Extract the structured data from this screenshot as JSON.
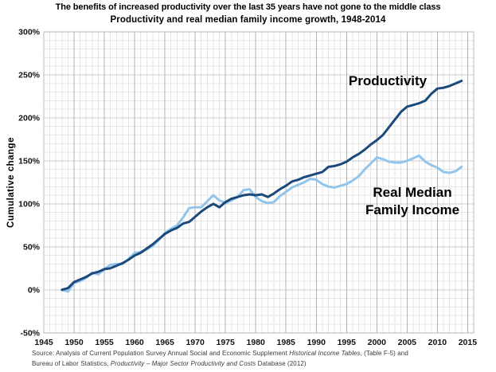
{
  "chart_data": {
    "type": "line",
    "title": "The benefits of increased productivity over the last 35 years have not gone to the middle class",
    "subtitle": "Productivity and real median family income growth, 1948-2014",
    "ylabel": "Cumulative change",
    "x_range": [
      1945,
      2016
    ],
    "y_range": [
      -50,
      300
    ],
    "grid": {
      "x_minor_step": 1,
      "x_major_step": 5,
      "y_minor_step": 10,
      "y_major_step": 50,
      "on": true
    },
    "x_ticks": [
      {
        "value": 1945,
        "label": "1945"
      },
      {
        "value": 1950,
        "label": "1950"
      },
      {
        "value": 1955,
        "label": "1955"
      },
      {
        "value": 1960,
        "label": "1960"
      },
      {
        "value": 1965,
        "label": "1965"
      },
      {
        "value": 1970,
        "label": "1970"
      },
      {
        "value": 1975,
        "label": "1975"
      },
      {
        "value": 1980,
        "label": "1980"
      },
      {
        "value": 1985,
        "label": "1985"
      },
      {
        "value": 1990,
        "label": "1990"
      },
      {
        "value": 1995,
        "label": "1995"
      },
      {
        "value": 2000,
        "label": "2000"
      },
      {
        "value": 2005,
        "label": "2005"
      },
      {
        "value": 2010,
        "label": "2010"
      },
      {
        "value": 2015,
        "label": "2015"
      }
    ],
    "y_ticks": [
      {
        "value": 300,
        "label": "300%"
      },
      {
        "value": 250,
        "label": "250%"
      },
      {
        "value": 200,
        "label": "200%"
      },
      {
        "value": 150,
        "label": "150%"
      },
      {
        "value": 100,
        "label": "100%"
      },
      {
        "value": 50,
        "label": "50%"
      },
      {
        "value": 0,
        "label": "0%"
      },
      {
        "value": -50,
        "label": "-50%"
      }
    ],
    "years": [
      1948,
      1949,
      1950,
      1951,
      1952,
      1953,
      1954,
      1955,
      1956,
      1957,
      1958,
      1959,
      1960,
      1961,
      1962,
      1963,
      1964,
      1965,
      1966,
      1967,
      1968,
      1969,
      1970,
      1971,
      1972,
      1973,
      1974,
      1975,
      1976,
      1977,
      1978,
      1979,
      1980,
      1981,
      1982,
      1983,
      1984,
      1985,
      1986,
      1987,
      1988,
      1989,
      1990,
      1991,
      1992,
      1993,
      1994,
      1995,
      1996,
      1997,
      1998,
      1999,
      2000,
      2001,
      2002,
      2003,
      2004,
      2005,
      2006,
      2007,
      2008,
      2009,
      2010,
      2011,
      2012,
      2013,
      2014
    ],
    "series": [
      {
        "name": "Productivity",
        "color": "#1b4a7a",
        "values": [
          0,
          2,
          9,
          12,
          15,
          19,
          21,
          24,
          25,
          28,
          31,
          35,
          40,
          43,
          48,
          53,
          59,
          65,
          69,
          72,
          77,
          79,
          85,
          91,
          96,
          100,
          96,
          102,
          106,
          108,
          110,
          111,
          110,
          111,
          108,
          112,
          117,
          121,
          126,
          128,
          131,
          133,
          135,
          137,
          143,
          144,
          146,
          149,
          154,
          158,
          163,
          169,
          174,
          180,
          189,
          198,
          207,
          213,
          215,
          217,
          220,
          228,
          234,
          235,
          237,
          240,
          243
        ]
      },
      {
        "name": "Real Median Family Income",
        "color": "#92c5ec",
        "values": [
          0,
          -2,
          8,
          10,
          14,
          20,
          18,
          24,
          29,
          30,
          30,
          36,
          43,
          44,
          47,
          51,
          58,
          66,
          71,
          75,
          84,
          95,
          96,
          96,
          103,
          110,
          104,
          101,
          104,
          108,
          116,
          117,
          108,
          103,
          101,
          102,
          109,
          114,
          119,
          122,
          125,
          129,
          128,
          123,
          120,
          119,
          121,
          123,
          127,
          132,
          140,
          147,
          154,
          152,
          149,
          148,
          148,
          150,
          153,
          156,
          149,
          145,
          142,
          137,
          136,
          138,
          143
        ]
      }
    ],
    "annotations": {
      "productivity": "Productivity",
      "income_line1": "Real Median",
      "income_line2": "Family Income"
    },
    "legend_position": "direct-labels",
    "colors": {
      "grid_minor": "#e6e6e6",
      "grid_major_v": "#b3b3b3",
      "grid_major_h": "#cccccc",
      "border": "#b8b8b8",
      "background": "#ffffff"
    }
  },
  "source": {
    "lines": [
      [
        {
          "t": "Source:  Analysis of Current Population Survey Annual Social and Economic Supplement ",
          "i": false
        },
        {
          "t": "Historical Income Tables,",
          "i": true
        },
        {
          "t": " (Table F-5) and",
          "i": false
        }
      ],
      [
        {
          "t": "Bureau of Labor Statistics, ",
          "i": false
        },
        {
          "t": "Productivity – Major Sector Productivity and Costs",
          "i": true
        },
        {
          "t": " Database (2012)",
          "i": false
        }
      ]
    ]
  }
}
